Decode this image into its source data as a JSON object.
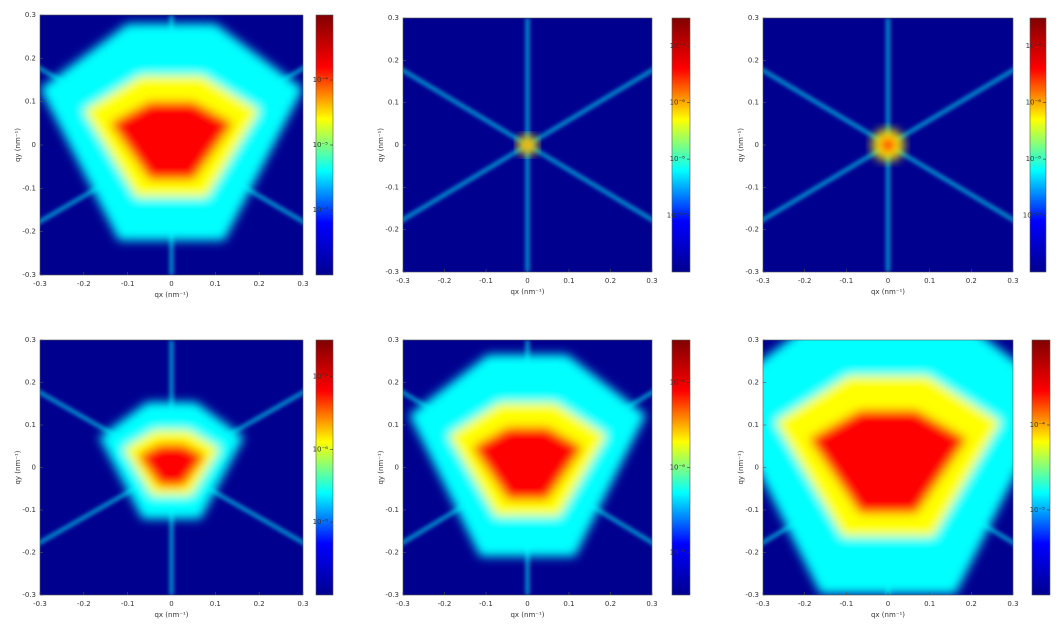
{
  "chart_data": [
    {
      "type": "heatmap",
      "xlabel": "qx (nm⁻¹)",
      "ylabel": "qy (nm⁻¹)",
      "xlim": [
        -0.3,
        0.3
      ],
      "ylim": [
        -0.3,
        0.3
      ],
      "xticks": [
        -0.3,
        -0.2,
        -0.1,
        0,
        0.1,
        0.2,
        0.3
      ],
      "yticks": [
        -0.3,
        -0.2,
        -0.1,
        0,
        0.1,
        0.2,
        0.3
      ],
      "clim": [
        -7,
        -3
      ],
      "cticks": [
        {
          "value": -4,
          "label": "10⁻⁴"
        },
        {
          "value": -5,
          "label": "10⁻⁵"
        },
        {
          "value": -6,
          "label": "10⁻⁶"
        }
      ],
      "colormap": [
        "#00008f",
        "#0000ff",
        "#00ffff",
        "#ffff00",
        "#ff0000",
        "#800000"
      ]
    },
    {
      "type": "heatmap",
      "xlabel": "qx (nm⁻¹)",
      "ylabel": "qy (nm⁻¹)",
      "xlim": [
        -0.3,
        0.3
      ],
      "ylim": [
        -0.3,
        0.3
      ],
      "xticks": [
        -0.3,
        -0.2,
        -0.1,
        0,
        0.1,
        0.2,
        0.3
      ],
      "yticks": [
        -0.3,
        -0.2,
        -0.1,
        0,
        0.1,
        0.2,
        0.3
      ],
      "clim": [
        -12,
        -3
      ],
      "cticks": [
        {
          "value": -4,
          "label": "10⁻⁴"
        },
        {
          "value": -6,
          "label": "10⁻⁶"
        },
        {
          "value": -8,
          "label": "10⁻⁸"
        },
        {
          "value": -10,
          "label": "10⁻¹⁰"
        }
      ],
      "colormap": [
        "#00008f",
        "#0000ff",
        "#00ffff",
        "#ffff00",
        "#ff0000",
        "#800000"
      ]
    },
    {
      "type": "heatmap",
      "xlabel": "qx (nm⁻¹)",
      "ylabel": "qy (nm⁻¹)",
      "xlim": [
        -0.3,
        0.3
      ],
      "ylim": [
        -0.3,
        0.3
      ],
      "xticks": [
        -0.3,
        -0.2,
        -0.1,
        0,
        0.1,
        0.2,
        0.3
      ],
      "yticks": [
        -0.3,
        -0.2,
        -0.1,
        0,
        0.1,
        0.2,
        0.3
      ],
      "clim": [
        -12,
        -3
      ],
      "cticks": [
        {
          "value": -4,
          "label": "10⁻⁴"
        },
        {
          "value": -6,
          "label": "10⁻⁶"
        },
        {
          "value": -8,
          "label": "10⁻⁸"
        },
        {
          "value": -10,
          "label": "10⁻¹⁰"
        }
      ],
      "colormap": [
        "#00008f",
        "#0000ff",
        "#00ffff",
        "#ffff00",
        "#ff0000",
        "#800000"
      ]
    },
    {
      "type": "heatmap",
      "xlabel": "qx (nm⁻¹)",
      "ylabel": "qy (nm⁻¹)",
      "xlim": [
        -0.3,
        0.3
      ],
      "ylim": [
        -0.3,
        0.3
      ],
      "xticks": [
        -0.3,
        -0.2,
        -0.1,
        0,
        0.1,
        0.2,
        0.3
      ],
      "yticks": [
        -0.3,
        -0.2,
        -0.1,
        0,
        0.1,
        0.2,
        0.3
      ],
      "clim": [
        -10,
        -3
      ],
      "cticks": [
        {
          "value": -4,
          "label": "10⁻⁴"
        },
        {
          "value": -6,
          "label": "10⁻⁶"
        },
        {
          "value": -8,
          "label": "10⁻⁸"
        }
      ],
      "colormap": [
        "#00008f",
        "#0000ff",
        "#00ffff",
        "#ffff00",
        "#ff0000",
        "#800000"
      ]
    },
    {
      "type": "heatmap",
      "xlabel": "qx (nm⁻¹)",
      "ylabel": "qy (nm⁻¹)",
      "xlim": [
        -0.3,
        0.3
      ],
      "ylim": [
        -0.3,
        0.3
      ],
      "xticks": [
        -0.3,
        -0.2,
        -0.1,
        0,
        0.1,
        0.2,
        0.3
      ],
      "yticks": [
        -0.3,
        -0.2,
        -0.1,
        0,
        0.1,
        0.2,
        0.3
      ],
      "clim": [
        -9,
        -3
      ],
      "cticks": [
        {
          "value": -4,
          "label": "10⁻⁴"
        },
        {
          "value": -6,
          "label": "10⁻⁶"
        },
        {
          "value": -8,
          "label": "10⁻⁸"
        }
      ],
      "colormap": [
        "#00008f",
        "#0000ff",
        "#00ffff",
        "#ffff00",
        "#ff0000",
        "#800000"
      ]
    },
    {
      "type": "heatmap",
      "xlabel": "qx (nm⁻¹)",
      "ylabel": "qy (nm⁻¹)",
      "xlim": [
        -0.3,
        0.3
      ],
      "ylim": [
        -0.3,
        0.3
      ],
      "xticks": [
        -0.3,
        -0.2,
        -0.1,
        0,
        0.1,
        0.2,
        0.3
      ],
      "yticks": [
        -0.3,
        -0.2,
        -0.1,
        0,
        0.1,
        0.2,
        0.3
      ],
      "clim": [
        -6,
        -3
      ],
      "cticks": [
        {
          "value": -4,
          "label": "10⁻⁴"
        },
        {
          "value": -5,
          "label": "10⁻⁵"
        }
      ],
      "colormap": [
        "#00008f",
        "#0000ff",
        "#00ffff",
        "#ffff00",
        "#ff0000",
        "#800000"
      ]
    }
  ]
}
